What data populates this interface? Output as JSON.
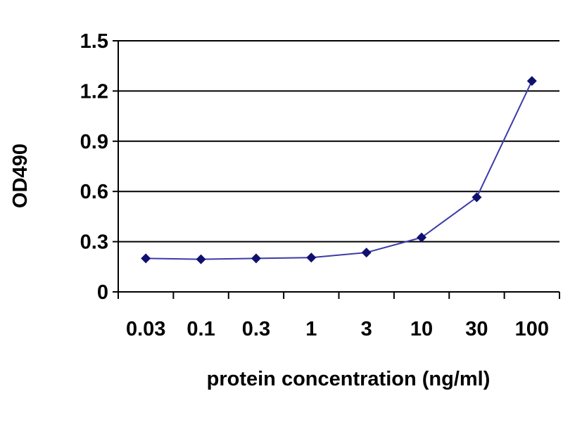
{
  "chart_data": {
    "type": "line",
    "title": "",
    "xlabel": "protein concentration (ng/ml)",
    "ylabel": "OD490",
    "categories": [
      "0.03",
      "0.1",
      "0.3",
      "1",
      "3",
      "10",
      "30",
      "100"
    ],
    "series": [
      {
        "values": [
          0.2,
          0.195,
          0.2,
          0.205,
          0.235,
          0.325,
          0.565,
          1.26
        ]
      }
    ],
    "yticks": [
      "0",
      "0.3",
      "0.6",
      "0.9",
      "1.2",
      "1.5"
    ],
    "ylim": [
      0,
      1.5
    ],
    "grid": true,
    "legend": "none",
    "colors": {
      "line": "#3b3ba8",
      "marker": "#101070",
      "grid": "#000000",
      "axis": "#000000"
    }
  }
}
